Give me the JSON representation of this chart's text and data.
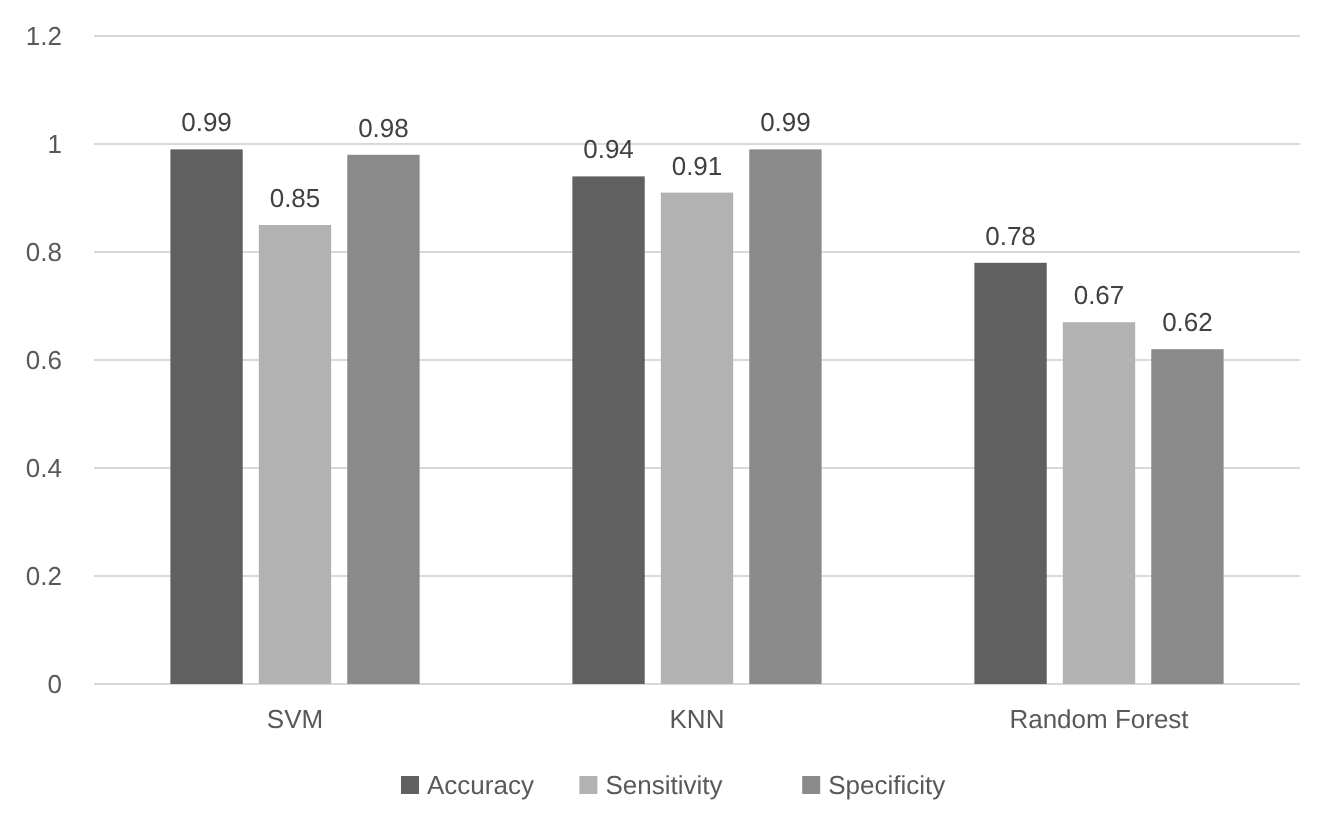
{
  "chart_data": {
    "type": "bar",
    "categories": [
      "SVM",
      "KNN",
      "Random Forest"
    ],
    "series": [
      {
        "name": "Accuracy",
        "color": "#606060",
        "values": [
          0.99,
          0.94,
          0.78
        ]
      },
      {
        "name": "Sensitivity",
        "color": "#b2b2b2",
        "values": [
          0.85,
          0.91,
          0.67
        ]
      },
      {
        "name": "Specificity",
        "color": "#8a8a8a",
        "values": [
          0.98,
          0.99,
          0.62
        ]
      }
    ],
    "ylim": [
      0,
      1.2
    ],
    "yticks": [
      0,
      {
        "value": 0.2,
        "label": "0.2"
      },
      {
        "value": 0.4,
        "label": "0.4"
      },
      {
        "value": 0.6,
        "label": "0.6"
      },
      {
        "value": 0.8,
        "label": "0.8"
      },
      1,
      {
        "value": 1.2,
        "label": "1.2"
      }
    ],
    "grid": "y",
    "legend": "bottom",
    "data_labels": true
  }
}
